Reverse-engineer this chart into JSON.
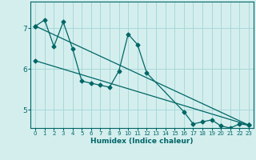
{
  "xlabel": "Humidex (Indice chaleur)",
  "ylabel": "",
  "bg_color": "#d4eeee",
  "grid_color": "#a8d8d8",
  "line_color": "#006666",
  "xlim": [
    -0.5,
    23.5
  ],
  "ylim": [
    4.55,
    7.65
  ],
  "yticks": [
    5,
    6,
    7
  ],
  "xticks": [
    0,
    1,
    2,
    3,
    4,
    5,
    6,
    7,
    8,
    9,
    10,
    11,
    12,
    13,
    14,
    15,
    16,
    17,
    18,
    19,
    20,
    21,
    22,
    23
  ],
  "series": [
    {
      "x": [
        0,
        1,
        2,
        3,
        4,
        5,
        6,
        7,
        8,
        9,
        10,
        11,
        12,
        16,
        17,
        18,
        19,
        20,
        21,
        22,
        23
      ],
      "y": [
        7.05,
        7.2,
        6.55,
        7.15,
        6.5,
        5.7,
        5.65,
        5.6,
        5.55,
        5.95,
        6.85,
        6.6,
        5.9,
        4.95,
        4.65,
        4.7,
        4.75,
        4.6,
        4.55,
        4.65,
        4.62
      ]
    },
    {
      "x": [
        0,
        23
      ],
      "y": [
        7.05,
        4.62
      ]
    },
    {
      "x": [
        0,
        23
      ],
      "y": [
        6.2,
        4.62
      ]
    }
  ]
}
